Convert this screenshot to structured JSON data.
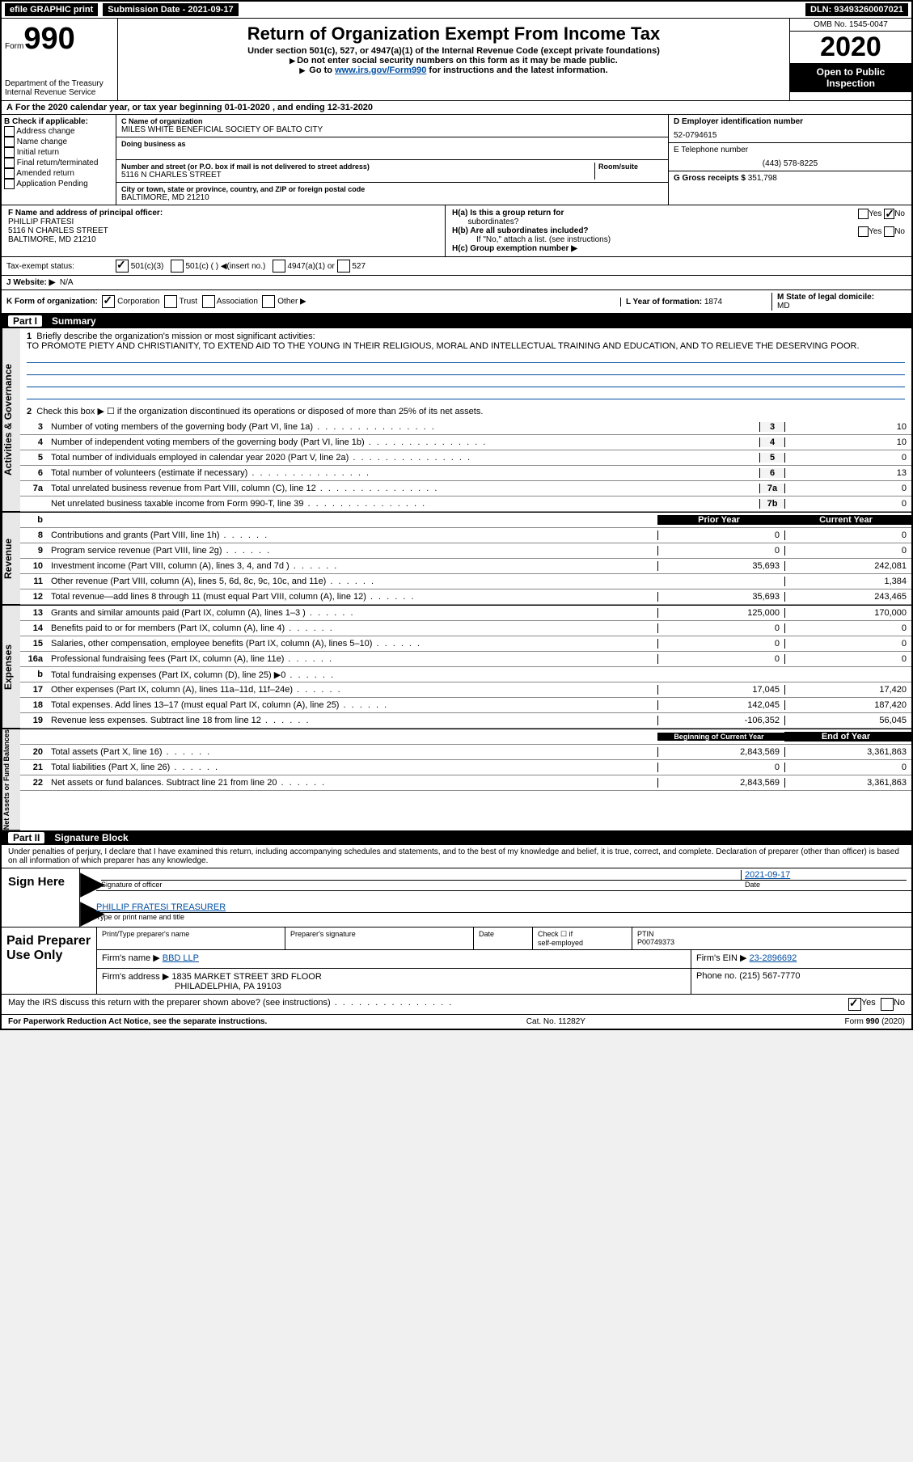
{
  "top": {
    "efile": "efile GRAPHIC print",
    "subdate_label": "Submission Date - ",
    "subdate": "2021-09-17",
    "dln_label": "DLN: ",
    "dln": "93493260007021"
  },
  "hdr": {
    "form": "Form",
    "n990": "990",
    "dept": "Department of the Treasury",
    "irs": "Internal Revenue Service",
    "title": "Return of Organization Exempt From Income Tax",
    "sub1": "Under section 501(c), 527, or 4947(a)(1) of the Internal Revenue Code (except private foundations)",
    "sub2": "Do not enter social security numbers on this form as it may be made public.",
    "sub3a": "Go to ",
    "sub3link": "www.irs.gov/Form990",
    "sub3b": " for instructions and the latest information.",
    "omb": "OMB No. 1545-0047",
    "year": "2020",
    "open": "Open to Public Inspection"
  },
  "a": {
    "line": "For the 2020 calendar year, or tax year beginning 01-01-2020    , and ending 12-31-2020",
    "prefix": "A"
  },
  "b": {
    "label": "B Check if applicable:",
    "addr": "Address change",
    "name": "Name change",
    "init": "Initial return",
    "final": "Final return/terminated",
    "amend": "Amended return",
    "app": "Application Pending"
  },
  "c": {
    "lbl": "C Name of organization",
    "org": "MILES WHITE BENEFICIAL SOCIETY OF BALTO CITY",
    "dba": "Doing business as",
    "addr_lbl": "Number and street (or P.O. box if mail is not delivered to street address)",
    "room": "Room/suite",
    "street": "5116 N CHARLES STREET",
    "city_lbl": "City or town, state or province, country, and ZIP or foreign postal code",
    "city": "BALTIMORE, MD  21210"
  },
  "d": {
    "lbl": "D Employer identification number",
    "ein": "52-0794615"
  },
  "e": {
    "lbl": "E Telephone number",
    "phone": "(443) 578-8225"
  },
  "g": {
    "lbl": "G Gross receipts $ ",
    "val": "351,798"
  },
  "f": {
    "lbl": "F  Name and address of principal officer:",
    "name": "PHILLIP FRATESI",
    "street": "5116 N CHARLES STREET",
    "city": "BALTIMORE, MD  21210"
  },
  "h": {
    "ha": "H(a)  Is this a group return for",
    "sub": "subordinates?",
    "hb": "H(b)  Are all subordinates included?",
    "note": "If \"No,\" attach a list. (see instructions)",
    "hc": "H(c)  Group exemption number ▶",
    "yes": "Yes",
    "no": "No"
  },
  "i": {
    "lbl": "Tax-exempt status:",
    "c3": "501(c)(3)",
    "c": "501(c) (   ) ◀(insert no.)",
    "a4947": "4947(a)(1) or",
    "s527": "527"
  },
  "j": {
    "lbl": "J   Website: ▶",
    "val": "N/A"
  },
  "k": {
    "lbl": "K Form of organization:",
    "corp": "Corporation",
    "trust": "Trust",
    "assoc": "Association",
    "other": "Other ▶"
  },
  "l": {
    "lbl": "L Year of formation: ",
    "val": "1874"
  },
  "m": {
    "lbl": "M State of legal domicile:",
    "val": "MD"
  },
  "part1": {
    "pt": "Part I",
    "ttl": "Summary"
  },
  "p1_1": {
    "num": "1",
    "txt": "Briefly describe the organization's mission or most significant activities:",
    "mission": "TO PROMOTE PIETY AND CHRISTIANITY, TO EXTEND AID TO THE YOUNG IN THEIR RELIGIOUS, MORAL AND INTELLECTUAL TRAINING AND EDUCATION, AND TO RELIEVE THE DESERVING POOR."
  },
  "p1_2": {
    "num": "2",
    "txt": "Check this box ▶ ☐ if the organization discontinued its operations or disposed of more than 25% of its net assets."
  },
  "lines_gov": [
    {
      "n": "3",
      "d": "Number of voting members of the governing body (Part VI, line 1a)",
      "b": "3",
      "v": "10"
    },
    {
      "n": "4",
      "d": "Number of independent voting members of the governing body (Part VI, line 1b)",
      "b": "4",
      "v": "10"
    },
    {
      "n": "5",
      "d": "Total number of individuals employed in calendar year 2020 (Part V, line 2a)",
      "b": "5",
      "v": "0"
    },
    {
      "n": "6",
      "d": "Total number of volunteers (estimate if necessary)",
      "b": "6",
      "v": "13"
    },
    {
      "n": "7a",
      "d": "Total unrelated business revenue from Part VIII, column (C), line 12",
      "b": "7a",
      "v": "0"
    },
    {
      "n": "",
      "d": "Net unrelated business taxable income from Form 990-T, line 39",
      "b": "7b",
      "v": "0"
    }
  ],
  "col_hdr": {
    "py": "Prior Year",
    "cy": "Current Year"
  },
  "lines_rev": [
    {
      "n": "8",
      "d": "Contributions and grants (Part VIII, line 1h)",
      "p": "0",
      "c": "0"
    },
    {
      "n": "9",
      "d": "Program service revenue (Part VIII, line 2g)",
      "p": "0",
      "c": "0"
    },
    {
      "n": "10",
      "d": "Investment income (Part VIII, column (A), lines 3, 4, and 7d )",
      "p": "35,693",
      "c": "242,081"
    },
    {
      "n": "11",
      "d": "Other revenue (Part VIII, column (A), lines 5, 6d, 8c, 9c, 10c, and 11e)",
      "p": "",
      "c": "1,384"
    },
    {
      "n": "12",
      "d": "Total revenue—add lines 8 through 11 (must equal Part VIII, column (A), line 12)",
      "p": "35,693",
      "c": "243,465"
    }
  ],
  "lines_exp": [
    {
      "n": "13",
      "d": "Grants and similar amounts paid (Part IX, column (A), lines 1–3 )",
      "p": "125,000",
      "c": "170,000"
    },
    {
      "n": "14",
      "d": "Benefits paid to or for members (Part IX, column (A), line 4)",
      "p": "0",
      "c": "0"
    },
    {
      "n": "15",
      "d": "Salaries, other compensation, employee benefits (Part IX, column (A), lines 5–10)",
      "p": "0",
      "c": "0"
    },
    {
      "n": "16a",
      "d": "Professional fundraising fees (Part IX, column (A), line 11e)",
      "p": "0",
      "c": "0"
    },
    {
      "n": "b",
      "d": "Total fundraising expenses (Part IX, column (D), line 25) ▶0",
      "p": "SHADE",
      "c": "SHADE"
    },
    {
      "n": "17",
      "d": "Other expenses (Part IX, column (A), lines 11a–11d, 11f–24e)",
      "p": "17,045",
      "c": "17,420"
    },
    {
      "n": "18",
      "d": "Total expenses. Add lines 13–17 (must equal Part IX, column (A), line 25)",
      "p": "142,045",
      "c": "187,420"
    },
    {
      "n": "19",
      "d": "Revenue less expenses. Subtract line 18 from line 12",
      "p": "-106,352",
      "c": "56,045"
    }
  ],
  "col_hdr2": {
    "py": "Beginning of Current Year",
    "cy": "End of Year"
  },
  "lines_net": [
    {
      "n": "20",
      "d": "Total assets (Part X, line 16)",
      "p": "2,843,569",
      "c": "3,361,863"
    },
    {
      "n": "21",
      "d": "Total liabilities (Part X, line 26)",
      "p": "0",
      "c": "0"
    },
    {
      "n": "22",
      "d": "Net assets or fund balances. Subtract line 21 from line 20",
      "p": "2,843,569",
      "c": "3,361,863"
    }
  ],
  "part2": {
    "pt": "Part II",
    "ttl": "Signature Block"
  },
  "penalty": "Under penalties of perjury, I declare that I have examined this return, including accompanying schedules and statements, and to the best of my knowledge and belief, it is true, correct, and complete. Declaration of preparer (other than officer) is based on all information of which preparer has any knowledge.",
  "sign": {
    "here": "Sign Here",
    "sigoff": "Signature of officer",
    "date_lbl": "Date",
    "date": "2021-09-17",
    "name": "PHILLIP FRATESI  TREASURER",
    "type": "Type or print name and title"
  },
  "prep": {
    "label": "Paid Preparer Use Only",
    "h1": "Print/Type preparer's name",
    "h2": "Preparer's signature",
    "h3": "Date",
    "h4a": "Check ☐ if",
    "h4b": "self-employed",
    "ptin_lbl": "PTIN",
    "ptin": "P00749373",
    "firm_lbl": "Firm's name   ▶",
    "firm": "BBD LLP",
    "ein_lbl": "Firm's EIN ▶",
    "ein": "23-2896692",
    "addr_lbl": "Firm's address ▶",
    "addr1": "1835 MARKET STREET 3RD FLOOR",
    "addr2": "PHILADELPHIA, PA  19103",
    "phone_lbl": "Phone no. ",
    "phone": "(215) 567-7770"
  },
  "discuss": "May the IRS discuss this return with the preparer shown above? (see instructions)",
  "foot": {
    "pra": "For Paperwork Reduction Act Notice, see the separate instructions.",
    "cat": "Cat. No. 11282Y",
    "form": "Form 990 (2020)"
  },
  "sides": {
    "gov": "Activities & Governance",
    "rev": "Revenue",
    "exp": "Expenses",
    "net": "Net Assets or Fund Balances"
  }
}
